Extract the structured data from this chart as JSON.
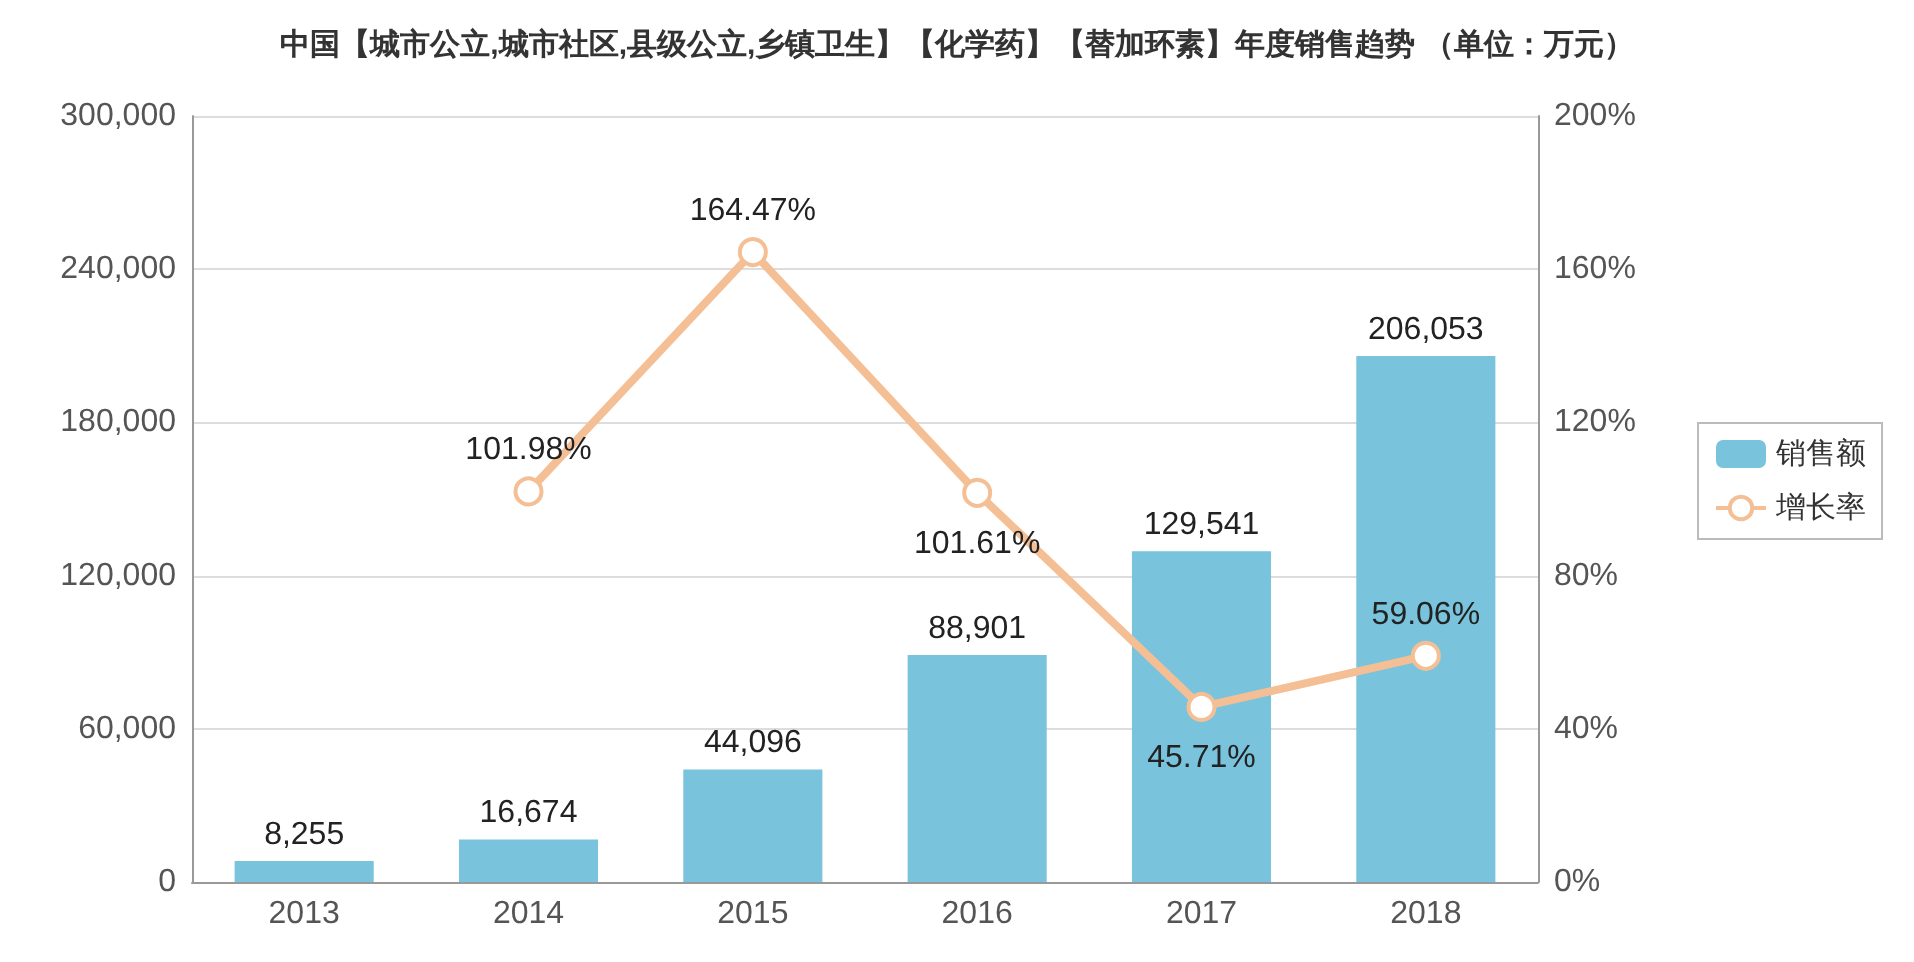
{
  "chart_data": {
    "type": "bar",
    "title": "中国【城市公立,城市社区,县级公立,乡镇卫生】【化学药】【替加环素】年度销售趋势 （单位：万元）",
    "categories": [
      "2013",
      "2014",
      "2015",
      "2016",
      "2017",
      "2018"
    ],
    "series": [
      {
        "name": "销售额",
        "color": "#79c3dc",
        "values": [
          8255,
          16674,
          44096,
          88901,
          129541,
          206053
        ],
        "value_labels": [
          "8,255",
          "16,674",
          "44,096",
          "88,901",
          "129,541",
          "206,053"
        ]
      },
      {
        "name": "增长率",
        "type": "line",
        "axis": "y2",
        "color": "#f5bf96",
        "marker": "circle",
        "values": [
          null,
          101.98,
          164.47,
          101.61,
          45.71,
          59.06
        ],
        "value_labels": [
          null,
          "101.98%",
          "164.47%",
          "101.61%",
          "45.71%",
          "59.06%"
        ]
      }
    ],
    "ylim": [
      0,
      300000
    ],
    "yticks": [
      {
        "value": 0,
        "label": "0"
      },
      {
        "value": 60000,
        "label": "60,000"
      },
      {
        "value": 120000,
        "label": "120,000"
      },
      {
        "value": 180000,
        "label": "180,000"
      },
      {
        "value": 240000,
        "label": "240,000"
      },
      {
        "value": 300000,
        "label": "300,000"
      }
    ],
    "y2lim": [
      0,
      200
    ],
    "y2ticks": [
      {
        "value": 0,
        "label": "0%"
      },
      {
        "value": 40,
        "label": "40%"
      },
      {
        "value": 80,
        "label": "80%"
      },
      {
        "value": 120,
        "label": "120%"
      },
      {
        "value": 160,
        "label": "160%"
      },
      {
        "value": 200,
        "label": "200%"
      }
    ],
    "grid": "y",
    "legend": "right"
  }
}
